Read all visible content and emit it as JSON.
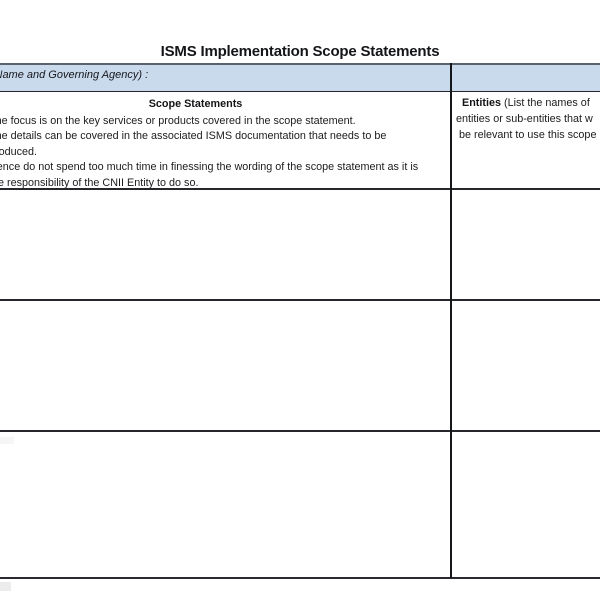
{
  "page": {
    "title": "ISMS Implementation Scope Statements"
  },
  "table": {
    "header_row": {
      "left_label": "Name and Governing Agency) :",
      "right_label": ""
    },
    "columns": {
      "scope": {
        "header": "Scope Statements",
        "notes": [
          "The focus is on the key services or products covered in the scope statement.",
          "The details can be covered in the associated ISMS documentation that needs to be",
          "produced.",
          "Hence do not spend too much time in finessing the wording of the scope statement as it is",
          "the responsibility of the CNII Entity to do so."
        ]
      },
      "entities": {
        "header_bold": "Entities",
        "header_rest": " (List the names of",
        "header_line2": "entities or sub-entities that w",
        "header_line3": "be relevant to use this scope"
      }
    },
    "empty_body_rows": 3
  },
  "colors": {
    "header_fill": "#c9daed",
    "outer_border": "#59626e",
    "grid_line": "#26272b",
    "text": "#1b1c1f"
  }
}
